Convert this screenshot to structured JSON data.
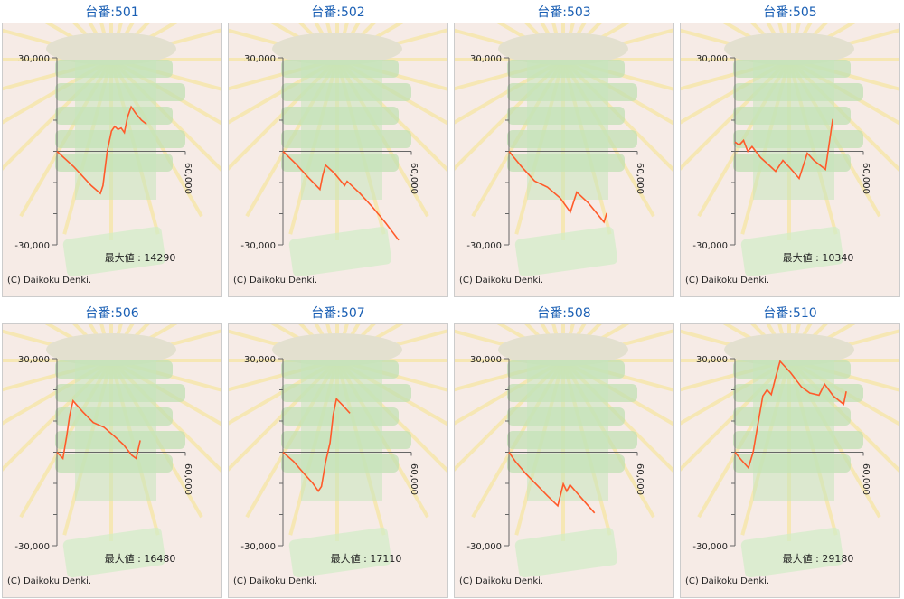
{
  "chart_data": [
    {
      "type": "line",
      "title": "台番:501",
      "xlim": [
        0,
        60000
      ],
      "ylim": [
        -30000,
        30000
      ],
      "xticks": [
        {
          "value": 60000,
          "label": "60,000"
        }
      ],
      "yticks": [
        {
          "value": 30000,
          "label": "30,000"
        },
        {
          "value": -30000,
          "label": "-30,000"
        }
      ],
      "yminorticks": [
        20000,
        10000,
        0,
        -10000,
        -20000
      ],
      "x": [
        0,
        8000,
        16000,
        20300,
        21500,
        23500,
        25500,
        27000,
        28500,
        30000,
        31500,
        33000,
        34700,
        37000,
        39500,
        41900
      ],
      "series": [
        {
          "color": "#ff5a2a",
          "values": [
            0,
            -5000,
            -11000,
            -13500,
            -11000,
            0,
            6500,
            8000,
            7000,
            7500,
            6000,
            11000,
            14290,
            12000,
            10000,
            8700
          ]
        }
      ],
      "max_label": "最大値 : 14290",
      "copyright": "(C) Daikoku Denki."
    },
    {
      "type": "line",
      "title": "台番:502",
      "xlim": [
        0,
        60000
      ],
      "ylim": [
        -30000,
        30000
      ],
      "xticks": [
        {
          "value": 60000,
          "label": "60,000"
        }
      ],
      "yticks": [
        {
          "value": 30000,
          "label": "30,000"
        },
        {
          "value": -30000,
          "label": "-30,000"
        }
      ],
      "yminorticks": [
        20000,
        10000,
        0,
        -10000,
        -20000
      ],
      "x": [
        0,
        6000,
        12000,
        17300,
        18500,
        19900,
        24000,
        28800,
        30000,
        36000,
        42000,
        48000,
        54100
      ],
      "series": [
        {
          "color": "#ff5a2a",
          "values": [
            0,
            -4000,
            -8500,
            -12200,
            -8000,
            -4400,
            -7000,
            -11000,
            -9600,
            -13500,
            -18000,
            -23000,
            -28500
          ]
        }
      ],
      "copyright": "(C) Daikoku Denki."
    },
    {
      "type": "line",
      "title": "台番:503",
      "xlim": [
        0,
        60000
      ],
      "ylim": [
        -30000,
        30000
      ],
      "xticks": [
        {
          "value": 60000,
          "label": "60,000"
        }
      ],
      "yticks": [
        {
          "value": 30000,
          "label": "30,000"
        },
        {
          "value": -30000,
          "label": "-30,000"
        }
      ],
      "yminorticks": [
        20000,
        10000,
        0,
        -10000,
        -20000
      ],
      "x": [
        0,
        6000,
        12000,
        18000,
        24000,
        28700,
        31700,
        37000,
        44400,
        45700
      ],
      "series": [
        {
          "color": "#ff5a2a",
          "values": [
            0,
            -5000,
            -9500,
            -11500,
            -15000,
            -19500,
            -13100,
            -16500,
            -22700,
            -19800
          ]
        }
      ],
      "copyright": "(C) Daikoku Denki."
    },
    {
      "type": "line",
      "title": "台番:505",
      "xlim": [
        0,
        60000
      ],
      "ylim": [
        -30000,
        30000
      ],
      "xticks": [
        {
          "value": 60000,
          "label": "60,000"
        }
      ],
      "yticks": [
        {
          "value": 30000,
          "label": "30,000"
        },
        {
          "value": -30000,
          "label": "-30,000"
        }
      ],
      "yminorticks": [
        20000,
        10000,
        0,
        -10000,
        -20000
      ],
      "x": [
        0,
        2000,
        4000,
        6000,
        8000,
        12000,
        16000,
        19000,
        22400,
        26000,
        30000,
        33800,
        37000,
        42300,
        45700
      ],
      "series": [
        {
          "color": "#ff5a2a",
          "values": [
            3000,
            2000,
            3500,
            0,
            1500,
            -2000,
            -4500,
            -6400,
            -2900,
            -5500,
            -8700,
            -600,
            -3000,
            -5800,
            10340
          ]
        }
      ],
      "max_label": "最大値 : 10340",
      "copyright": "(C) Daikoku Denki."
    },
    {
      "type": "line",
      "title": "台番:506",
      "xlim": [
        0,
        60000
      ],
      "ylim": [
        -30000,
        30000
      ],
      "xticks": [
        {
          "value": 60000,
          "label": "60,000"
        }
      ],
      "yticks": [
        {
          "value": 30000,
          "label": "30,000"
        },
        {
          "value": -30000,
          "label": "-30,000"
        }
      ],
      "yminorticks": [
        20000,
        10000,
        0,
        -10000,
        -20000
      ],
      "x": [
        0,
        2800,
        4500,
        6000,
        7500,
        12000,
        17000,
        22000,
        27000,
        31000,
        35000,
        37000,
        38900
      ],
      "series": [
        {
          "color": "#ff5a2a",
          "values": [
            0,
            -2000,
            5000,
            12000,
            16480,
            13000,
            9500,
            8000,
            5000,
            2500,
            -1000,
            -2000,
            3800
          ]
        }
      ],
      "max_label": "最大値 : 16480",
      "copyright": "(C) Daikoku Denki."
    },
    {
      "type": "line",
      "title": "台番:507",
      "xlim": [
        0,
        60000
      ],
      "ylim": [
        -30000,
        30000
      ],
      "xticks": [
        {
          "value": 60000,
          "label": "60,000"
        }
      ],
      "yticks": [
        {
          "value": 30000,
          "label": "30,000"
        },
        {
          "value": -30000,
          "label": "-30,000"
        }
      ],
      "yminorticks": [
        20000,
        10000,
        0,
        -10000,
        -20000
      ],
      "x": [
        0,
        5000,
        10000,
        14000,
        16500,
        18000,
        20000,
        22000,
        23500,
        25000,
        28000,
        31300
      ],
      "series": [
        {
          "color": "#ff5a2a",
          "values": [
            0,
            -3000,
            -7000,
            -10000,
            -12500,
            -11000,
            -3000,
            3000,
            12000,
            17110,
            15000,
            12500
          ]
        }
      ],
      "max_label": "最大値 : 17110",
      "copyright": "(C) Daikoku Denki."
    },
    {
      "type": "line",
      "title": "台番:508",
      "xlim": [
        0,
        60000
      ],
      "ylim": [
        -30000,
        30000
      ],
      "xticks": [
        {
          "value": 60000,
          "label": "60,000"
        }
      ],
      "yticks": [
        {
          "value": 30000,
          "label": "30,000"
        },
        {
          "value": -30000,
          "label": "-30,000"
        }
      ],
      "yminorticks": [
        20000,
        10000,
        0,
        -10000,
        -20000
      ],
      "x": [
        0,
        3000,
        8000,
        13000,
        18000,
        22800,
        25400,
        27000,
        28500,
        33000,
        40000
      ],
      "series": [
        {
          "color": "#ff5a2a",
          "values": [
            0,
            -3000,
            -7000,
            -10500,
            -14000,
            -17200,
            -10200,
            -12500,
            -10500,
            -14000,
            -19500
          ]
        }
      ],
      "copyright": "(C) Daikoku Denki."
    },
    {
      "type": "line",
      "title": "台番:510",
      "xlim": [
        0,
        60000
      ],
      "ylim": [
        -30000,
        30000
      ],
      "xticks": [
        {
          "value": 60000,
          "label": "60,000"
        }
      ],
      "yticks": [
        {
          "value": 30000,
          "label": "30,000"
        },
        {
          "value": -30000,
          "label": "-30,000"
        }
      ],
      "yminorticks": [
        20000,
        10000,
        0,
        -10000,
        -20000
      ],
      "x": [
        0,
        3000,
        6300,
        8500,
        11000,
        13000,
        15000,
        17000,
        19000,
        21100,
        26000,
        31000,
        35000,
        39300,
        41900,
        46000,
        50800,
        52000
      ],
      "series": [
        {
          "color": "#ff5a2a",
          "values": [
            0,
            -2500,
            -5000,
            0,
            10000,
            18000,
            20000,
            18500,
            24000,
            29180,
            25500,
            21000,
            19000,
            18300,
            21800,
            18000,
            15400,
            19500
          ]
        }
      ],
      "max_label": "最大値 : 29180",
      "copyright": "(C) Daikoku Denki."
    }
  ]
}
